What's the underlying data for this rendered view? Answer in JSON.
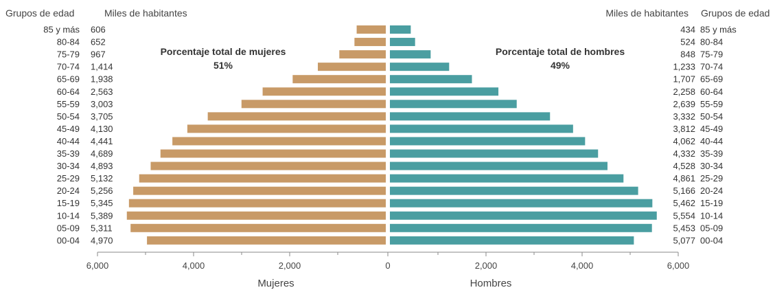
{
  "chart_data": {
    "type": "bar",
    "orientation": "horizontal-population-pyramid",
    "header_left_groups": "Grupos de edad",
    "header_left_values": "Miles de habitantes",
    "header_right_values": "Miles de habitantes",
    "header_right_groups": "Grupos de edad",
    "annotation_women_title": "Porcentaje total de mujeres",
    "annotation_women_value": "51%",
    "annotation_men_title": "Porcentaje total de hombres",
    "annotation_men_value": "49%",
    "xlabel_left": "Mujeres",
    "xlabel_right": "Hombres",
    "xlim": [
      0,
      6000
    ],
    "tick_labels": [
      "6,000",
      "4,000",
      "2,000",
      "0",
      "2,000",
      "4,000",
      "6,000"
    ],
    "categories": [
      "85 y más",
      "80-84",
      "75-79",
      "70-74",
      "65-69",
      "60-64",
      "55-59",
      "50-54",
      "45-49",
      "40-44",
      "35-39",
      "30-34",
      "25-29",
      "20-24",
      "15-19",
      "10-14",
      "05-09",
      "00-04"
    ],
    "women_labels": [
      "606",
      "652",
      "967",
      "1,414",
      "1,938",
      "2,563",
      "3,003",
      "3,705",
      "4,130",
      "4,441",
      "4,689",
      "4,893",
      "5,132",
      "5,256",
      "5,345",
      "5,389",
      "5,311",
      "4,970"
    ],
    "men_labels": [
      "434",
      "524",
      "848",
      "1,233",
      "1,707",
      "2,258",
      "2,639",
      "3,332",
      "3,812",
      "4,062",
      "4,332",
      "4,528",
      "4,861",
      "5,166",
      "5,462",
      "5,554",
      "5,453",
      "5,077"
    ],
    "series": [
      {
        "name": "Mujeres",
        "color": "#c89a67",
        "values": [
          606,
          652,
          967,
          1414,
          1938,
          2563,
          3003,
          3705,
          4130,
          4441,
          4689,
          4893,
          5132,
          5256,
          5345,
          5389,
          5311,
          4970
        ]
      },
      {
        "name": "Hombres",
        "color": "#4a9ea1",
        "values": [
          434,
          524,
          848,
          1233,
          1707,
          2258,
          2639,
          3332,
          3812,
          4062,
          4332,
          4528,
          4861,
          5166,
          5462,
          5554,
          5453,
          5077
        ]
      }
    ],
    "axis_color": "#8a8a8a",
    "grid": false
  }
}
